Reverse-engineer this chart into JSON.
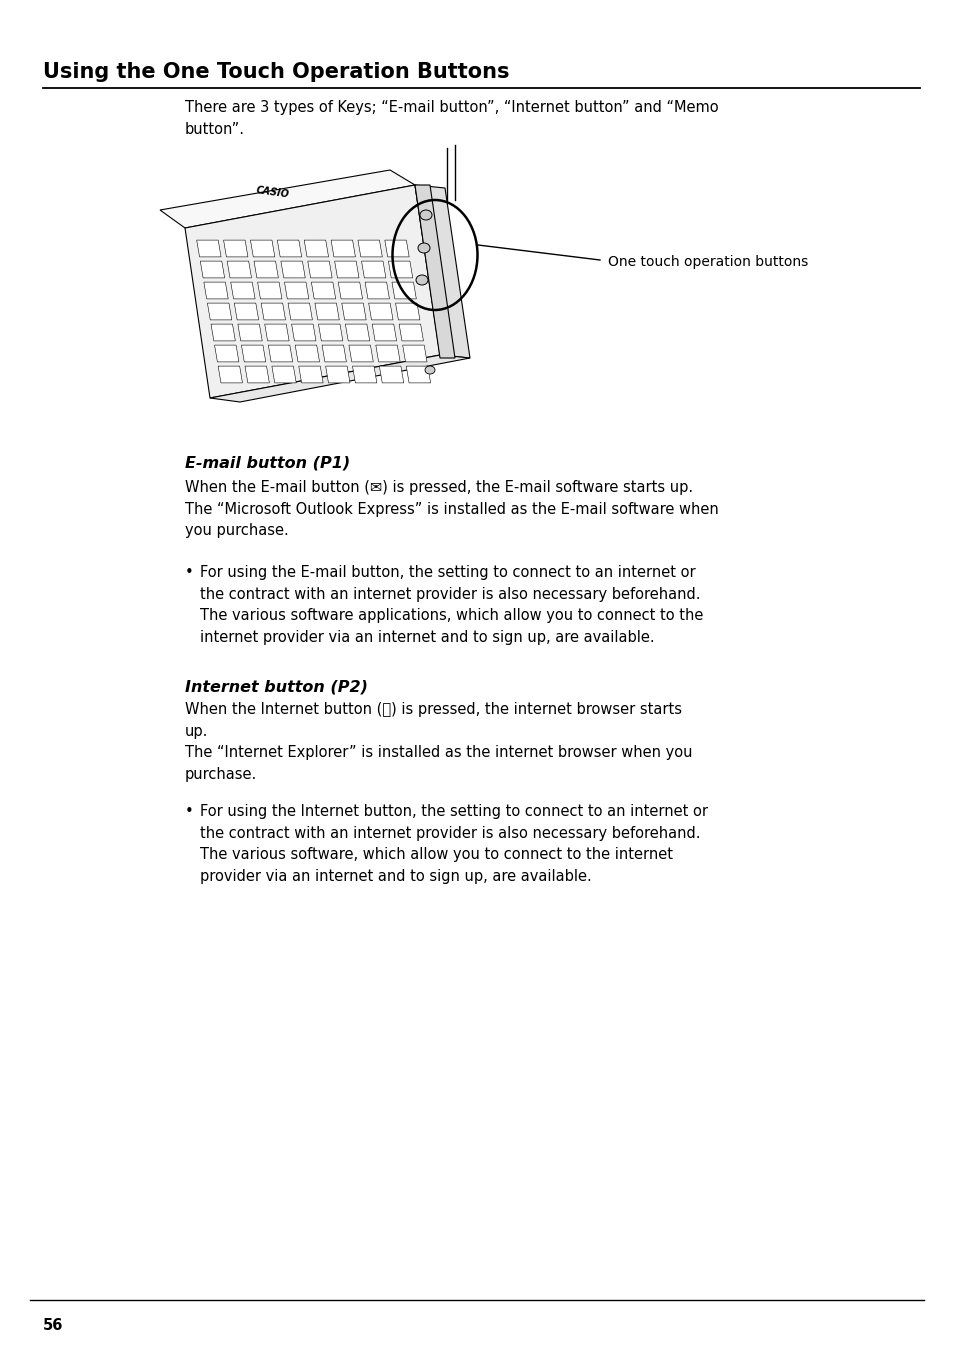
{
  "bg_color": "#ffffff",
  "text_color": "#000000",
  "title": "Using the One Touch Operation Buttons",
  "title_fontsize": 15,
  "body_fontsize": 10.5,
  "section_heading_fontsize": 11.5,
  "page_number": "56",
  "intro_text": "There are 3 types of Keys; “E-mail button”, “Internet button” and “Memo\nbutton”.",
  "image_caption": "One touch operation buttons",
  "section1_heading": "E-mail button (P1)",
  "section1_para": "When the E-mail button (✉) is pressed, the E-mail software starts up.\nThe “Microsoft Outlook Express” is installed as the E-mail software when\nyou purchase.",
  "section1_bullet": "For using the E-mail button, the setting to connect to an internet or\nthe contract with an internet provider is also necessary beforehand.\nThe various software applications, which allow you to connect to the\ninternet provider via an internet and to sign up, are available.",
  "section2_heading": "Internet button (P2)",
  "section2_para": "When the Internet button (⍉) is pressed, the internet browser starts\nup.\nThe “Internet Explorer” is installed as the internet browser when you\npurchase.",
  "section2_bullet": "For using the Internet button, the setting to connect to an internet or\nthe contract with an internet provider is also necessary beforehand.\nThe various software, which allow you to connect to the internet\nprovider via an internet and to sign up, are available."
}
